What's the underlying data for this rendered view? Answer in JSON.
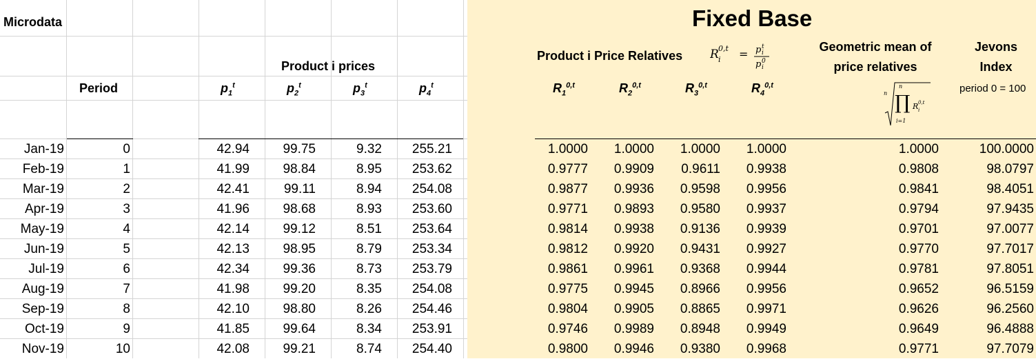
{
  "left_header": {
    "title": "Microdata",
    "period_label": "Period",
    "prices_label": "Product i  prices",
    "cols": [
      {
        "base": "p",
        "sub": "1",
        "sup": "t"
      },
      {
        "base": "p",
        "sub": "2",
        "sup": "t"
      },
      {
        "base": "p",
        "sub": "3",
        "sup": "t"
      },
      {
        "base": "p",
        "sub": "4",
        "sup": "t"
      }
    ]
  },
  "right_header": {
    "title": "Fixed Base",
    "relatives_label": "Product i  Price Relatives",
    "formula": "R_i^{0,t} = p_i^t / p_i^0",
    "cols": [
      {
        "base": "R",
        "sub": "1",
        "sup": "0,t"
      },
      {
        "base": "R",
        "sub": "2",
        "sup": "0,t"
      },
      {
        "base": "R",
        "sub": "3",
        "sup": "0,t"
      },
      {
        "base": "R",
        "sub": "4",
        "sup": "0,t"
      }
    ],
    "geo_label_1": "Geometric mean of",
    "geo_label_2": "price relatives",
    "jevons_label_1": "Jevons",
    "jevons_label_2": "Index",
    "jevons_note": "period 0  = 100"
  },
  "rows": [
    {
      "month": "Jan-19",
      "period": "0",
      "p": [
        "42.94",
        "99.75",
        "9.32",
        "255.21"
      ],
      "R": [
        "1.0000",
        "1.0000",
        "1.0000",
        "1.0000"
      ],
      "geo": "1.0000",
      "jevons": "100.0000"
    },
    {
      "month": "Feb-19",
      "period": "1",
      "p": [
        "41.99",
        "98.84",
        "8.95",
        "253.62"
      ],
      "R": [
        "0.9777",
        "0.9909",
        "0.9611",
        "0.9938"
      ],
      "geo": "0.9808",
      "jevons": "98.0797"
    },
    {
      "month": "Mar-19",
      "period": "2",
      "p": [
        "42.41",
        "99.11",
        "8.94",
        "254.08"
      ],
      "R": [
        "0.9877",
        "0.9936",
        "0.9598",
        "0.9956"
      ],
      "geo": "0.9841",
      "jevons": "98.4051"
    },
    {
      "month": "Apr-19",
      "period": "3",
      "p": [
        "41.96",
        "98.68",
        "8.93",
        "253.60"
      ],
      "R": [
        "0.9771",
        "0.9893",
        "0.9580",
        "0.9937"
      ],
      "geo": "0.9794",
      "jevons": "97.9435"
    },
    {
      "month": "May-19",
      "period": "4",
      "p": [
        "42.14",
        "99.12",
        "8.51",
        "253.64"
      ],
      "R": [
        "0.9814",
        "0.9938",
        "0.9136",
        "0.9939"
      ],
      "geo": "0.9701",
      "jevons": "97.0077"
    },
    {
      "month": "Jun-19",
      "period": "5",
      "p": [
        "42.13",
        "98.95",
        "8.79",
        "253.34"
      ],
      "R": [
        "0.9812",
        "0.9920",
        "0.9431",
        "0.9927"
      ],
      "geo": "0.9770",
      "jevons": "97.7017"
    },
    {
      "month": "Jul-19",
      "period": "6",
      "p": [
        "42.34",
        "99.36",
        "8.73",
        "253.79"
      ],
      "R": [
        "0.9861",
        "0.9961",
        "0.9368",
        "0.9944"
      ],
      "geo": "0.9781",
      "jevons": "97.8051"
    },
    {
      "month": "Aug-19",
      "period": "7",
      "p": [
        "41.98",
        "99.20",
        "8.35",
        "254.08"
      ],
      "R": [
        "0.9775",
        "0.9945",
        "0.8966",
        "0.9956"
      ],
      "geo": "0.9652",
      "jevons": "96.5159"
    },
    {
      "month": "Sep-19",
      "period": "8",
      "p": [
        "42.10",
        "98.80",
        "8.26",
        "254.46"
      ],
      "R": [
        "0.9804",
        "0.9905",
        "0.8865",
        "0.9971"
      ],
      "geo": "0.9626",
      "jevons": "96.2560"
    },
    {
      "month": "Oct-19",
      "period": "9",
      "p": [
        "41.85",
        "99.64",
        "8.34",
        "253.91"
      ],
      "R": [
        "0.9746",
        "0.9989",
        "0.8948",
        "0.9949"
      ],
      "geo": "0.9649",
      "jevons": "96.4888"
    },
    {
      "month": "Nov-19",
      "period": "10",
      "p": [
        "42.08",
        "99.21",
        "8.74",
        "254.40"
      ],
      "R": [
        "0.9800",
        "0.9946",
        "0.9380",
        "0.9968"
      ],
      "geo": "0.9771",
      "jevons": "97.7079"
    }
  ],
  "colors": {
    "shade": "#fff2cc",
    "grid": "#d4d4d4"
  }
}
